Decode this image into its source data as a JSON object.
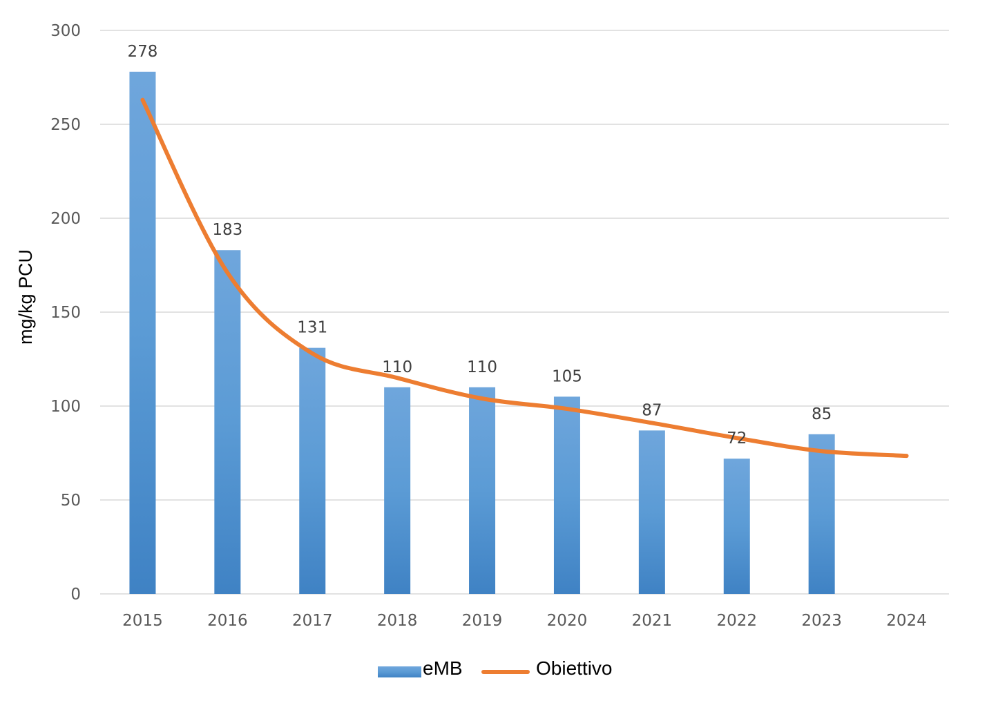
{
  "chart_data": {
    "type": "bar",
    "title": "",
    "xlabel": "",
    "ylabel": "mg/kg PCU",
    "ylim": [
      0,
      300
    ],
    "yticks": [
      0,
      50,
      100,
      150,
      200,
      250,
      300
    ],
    "grid": true,
    "legend_placement": "bottom",
    "categories": [
      "2015",
      "2016",
      "2017",
      "2018",
      "2019",
      "2020",
      "2021",
      "2022",
      "2023",
      "2024"
    ],
    "series": [
      {
        "name": "eMB",
        "type": "bar",
        "color": "#5b9bd5",
        "values": [
          278,
          183,
          131,
          110,
          110,
          105,
          87,
          72,
          85,
          null
        ],
        "labels": [
          "278",
          "183",
          "131",
          "110",
          "110",
          "105",
          "87",
          "72",
          "85",
          ""
        ]
      },
      {
        "name": "Obiettivo",
        "type": "line",
        "color": "#ed7d31",
        "values": [
          263,
          171,
          128,
          115,
          104,
          98.5,
          91,
          83,
          76,
          73.5
        ]
      }
    ]
  }
}
